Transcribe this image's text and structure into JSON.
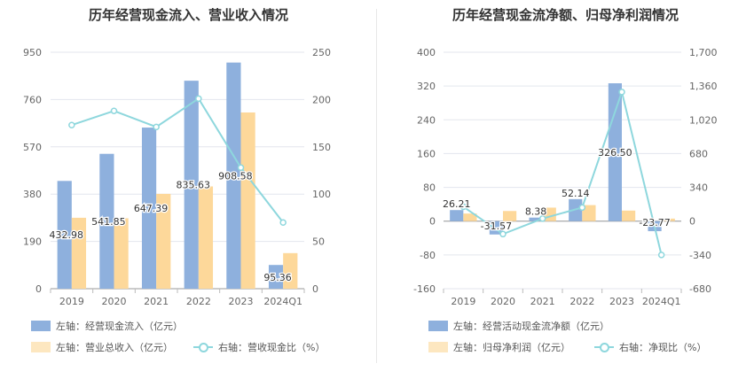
{
  "chart_data": [
    {
      "type": "bar+line",
      "title": "历年经营现金流入、营业收入情况",
      "categories": [
        "2019",
        "2020",
        "2021",
        "2022",
        "2023",
        "2024Q1"
      ],
      "left_axis": {
        "ticks": [
          0,
          190,
          380,
          570,
          760,
          950
        ],
        "ylim": [
          0,
          950
        ]
      },
      "right_axis": {
        "ticks": [
          0,
          50,
          100,
          150,
          200,
          250
        ],
        "ylim": [
          0,
          250
        ]
      },
      "series": [
        {
          "name": "左轴：经营现金流入（亿元）",
          "type": "bar",
          "axis": "left",
          "color": "#8eb0dd",
          "values": [
            432.98,
            541.85,
            647.39,
            835.63,
            908.58,
            95.36
          ],
          "labels": [
            "432.98",
            "541.85",
            "647.39",
            "835.63",
            "908.58",
            "95.36"
          ]
        },
        {
          "name": "左轴：营业总收入（亿元）",
          "type": "bar",
          "axis": "left",
          "color": "#fdd89a",
          "values": [
            285,
            283,
            381,
            411,
            708,
            143
          ]
        },
        {
          "name": "右轴：营收现金比（%）",
          "type": "line",
          "axis": "right",
          "color": "#8ed7dd",
          "values": [
            173,
            188,
            171,
            201,
            128,
            70
          ]
        }
      ]
    },
    {
      "type": "bar+line",
      "title": "历年经营现金流净额、归母净利润情况",
      "categories": [
        "2019",
        "2020",
        "2021",
        "2022",
        "2023",
        "2024Q1"
      ],
      "left_axis": {
        "ticks": [
          -160,
          -80,
          0,
          80,
          160,
          240,
          320,
          400
        ],
        "ylim": [
          -160,
          400
        ]
      },
      "right_axis": {
        "ticks": [
          -680,
          -340,
          0,
          340,
          680,
          1020,
          1360,
          1700
        ],
        "ylim": [
          -680,
          1700
        ]
      },
      "series": [
        {
          "name": "左轴：经营活动现金流净额（亿元）",
          "type": "bar",
          "axis": "left",
          "color": "#8eb0dd",
          "values": [
            26.21,
            -31.57,
            8.38,
            52.14,
            326.5,
            -23.77
          ],
          "labels": [
            "26.21",
            "-31.57",
            "8.38",
            "52.14",
            "326.50",
            "-23.77"
          ]
        },
        {
          "name": "左轴：归母净利润（亿元）",
          "type": "bar",
          "axis": "left",
          "color": "#fdd89a",
          "values": [
            18,
            24,
            32,
            38,
            25,
            6
          ]
        },
        {
          "name": "右轴：净现比（%）",
          "type": "line",
          "axis": "right",
          "color": "#8ed7dd",
          "values": [
            145,
            -130,
            26,
            137,
            1300,
            -340
          ]
        }
      ]
    }
  ]
}
